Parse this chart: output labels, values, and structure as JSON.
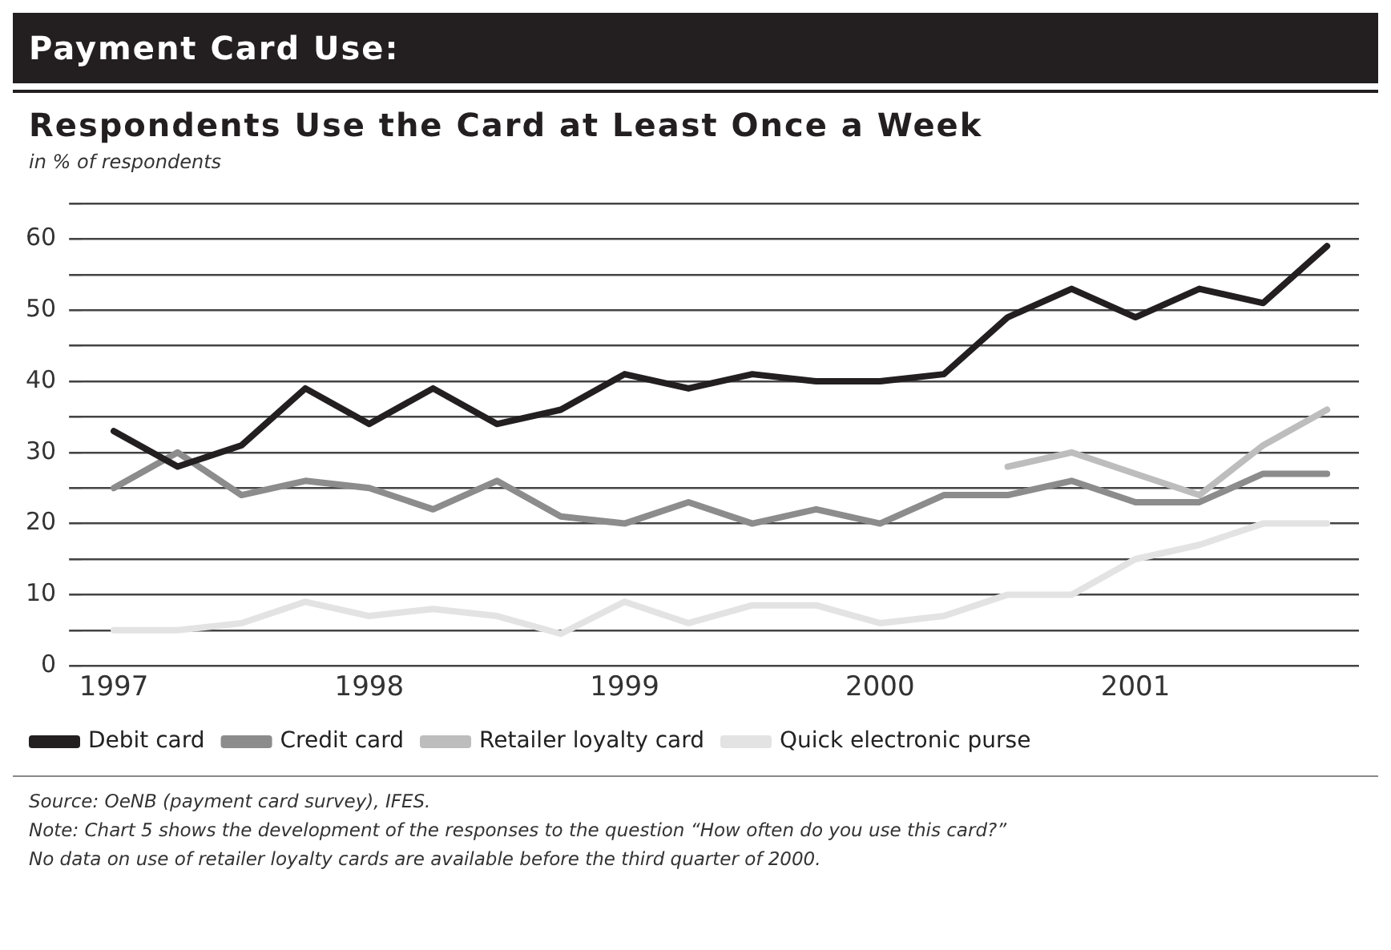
{
  "chart_data": {
    "type": "line",
    "title": "Payment Card Use:",
    "subtitle": "Respondents Use the Card at Least Once a Week",
    "ylabel": "in % of respondents",
    "categories": [
      "1997",
      null,
      null,
      null,
      "1998",
      null,
      null,
      null,
      "1999",
      null,
      null,
      null,
      "2000",
      null,
      null,
      null,
      "2001",
      null,
      null,
      null
    ],
    "series": [
      {
        "name": "Debit card",
        "color": "#231f20",
        "values": [
          33,
          28,
          31,
          39,
          34,
          39,
          34,
          36,
          41,
          39,
          41,
          40,
          40,
          41,
          49,
          53,
          49,
          53,
          51,
          59
        ]
      },
      {
        "name": "Credit card",
        "color": "#8c8c8c",
        "values": [
          25,
          30,
          24,
          26,
          25,
          22,
          26,
          21,
          20,
          23,
          20,
          22,
          20,
          24,
          24,
          26,
          23,
          23,
          27,
          27
        ]
      },
      {
        "name": "Retailer loyalty card",
        "color": "#bdbdbd",
        "values": [
          null,
          null,
          null,
          null,
          null,
          null,
          null,
          null,
          null,
          null,
          null,
          null,
          null,
          null,
          28,
          30,
          27,
          24,
          31,
          36
        ]
      },
      {
        "name": "Quick electronic purse",
        "color": "#e3e3e3",
        "values": [
          5,
          5,
          6,
          9,
          7,
          8,
          7,
          4.5,
          9,
          6,
          8.5,
          8.5,
          6,
          7,
          10,
          10,
          15,
          17,
          20,
          20
        ]
      }
    ],
    "ylim": [
      0,
      65
    ],
    "yticks": [
      0,
      {
        "value": 5,
        "label": null
      },
      10,
      {
        "value": 15,
        "label": null
      },
      20,
      {
        "value": 25,
        "label": null
      },
      30,
      {
        "value": 35,
        "label": null
      },
      40,
      {
        "value": 45,
        "label": null
      },
      50,
      {
        "value": 55,
        "label": null
      },
      60,
      {
        "value": 65,
        "label": null
      }
    ],
    "grid": "y",
    "legend": "bottom",
    "marker": "none",
    "line_style": "solid",
    "annotations": [
      "Source: OeNB (payment card survey), IFES.",
      "Note: Chart 5 shows the development of the responses to the question “How often do you use this card?”",
      "No data on use of retailer loyalty cards are available before the third quarter of 2000."
    ]
  }
}
